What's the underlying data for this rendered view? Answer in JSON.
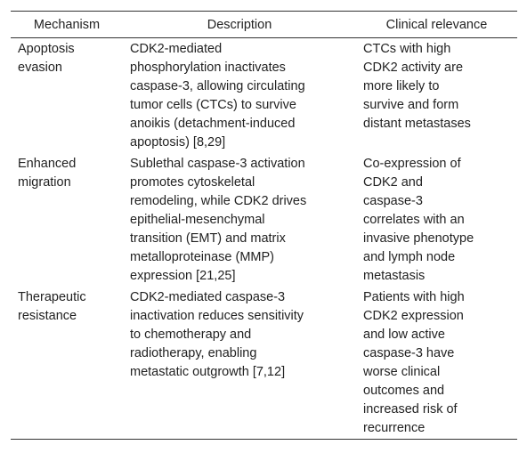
{
  "table": {
    "header": [
      "Mechanism",
      "Description",
      "Clinical relevance"
    ],
    "rows": [
      [
        [
          "Apoptosis",
          "evasion"
        ],
        [
          "CDK2-mediated",
          "phosphorylation inactivates",
          "caspase-3, allowing circulating",
          "tumor cells (CTCs) to survive",
          "anoikis (detachment-induced",
          "apoptosis) [8,29]"
        ],
        [
          "CTCs with high",
          "CDK2 activity are",
          "more likely to",
          "survive and form",
          "distant metastases"
        ]
      ],
      [
        [
          "Enhanced",
          "migration"
        ],
        [
          "Sublethal caspase-3 activation",
          "promotes cytoskeletal",
          "remodeling, while CDK2 drives",
          "epithelial-mesenchymal",
          "transition (EMT) and matrix",
          "metalloproteinase (MMP)",
          "expression [21,25]"
        ],
        [
          "Co-expression of",
          "CDK2 and",
          "caspase-3",
          "correlates with an",
          "invasive phenotype",
          "and lymph node",
          "metastasis"
        ]
      ],
      [
        [
          "Therapeutic",
          "resistance"
        ],
        [
          "CDK2-mediated caspase-3",
          "inactivation reduces sensitivity",
          "to chemotherapy and",
          "radiotherapy, enabling",
          "metastatic outgrowth [7,12]"
        ],
        [
          "Patients with high",
          "CDK2 expression",
          "and low active",
          "caspase-3 have",
          "worse clinical",
          "outcomes and",
          "increased risk of",
          "recurrence"
        ]
      ]
    ]
  }
}
